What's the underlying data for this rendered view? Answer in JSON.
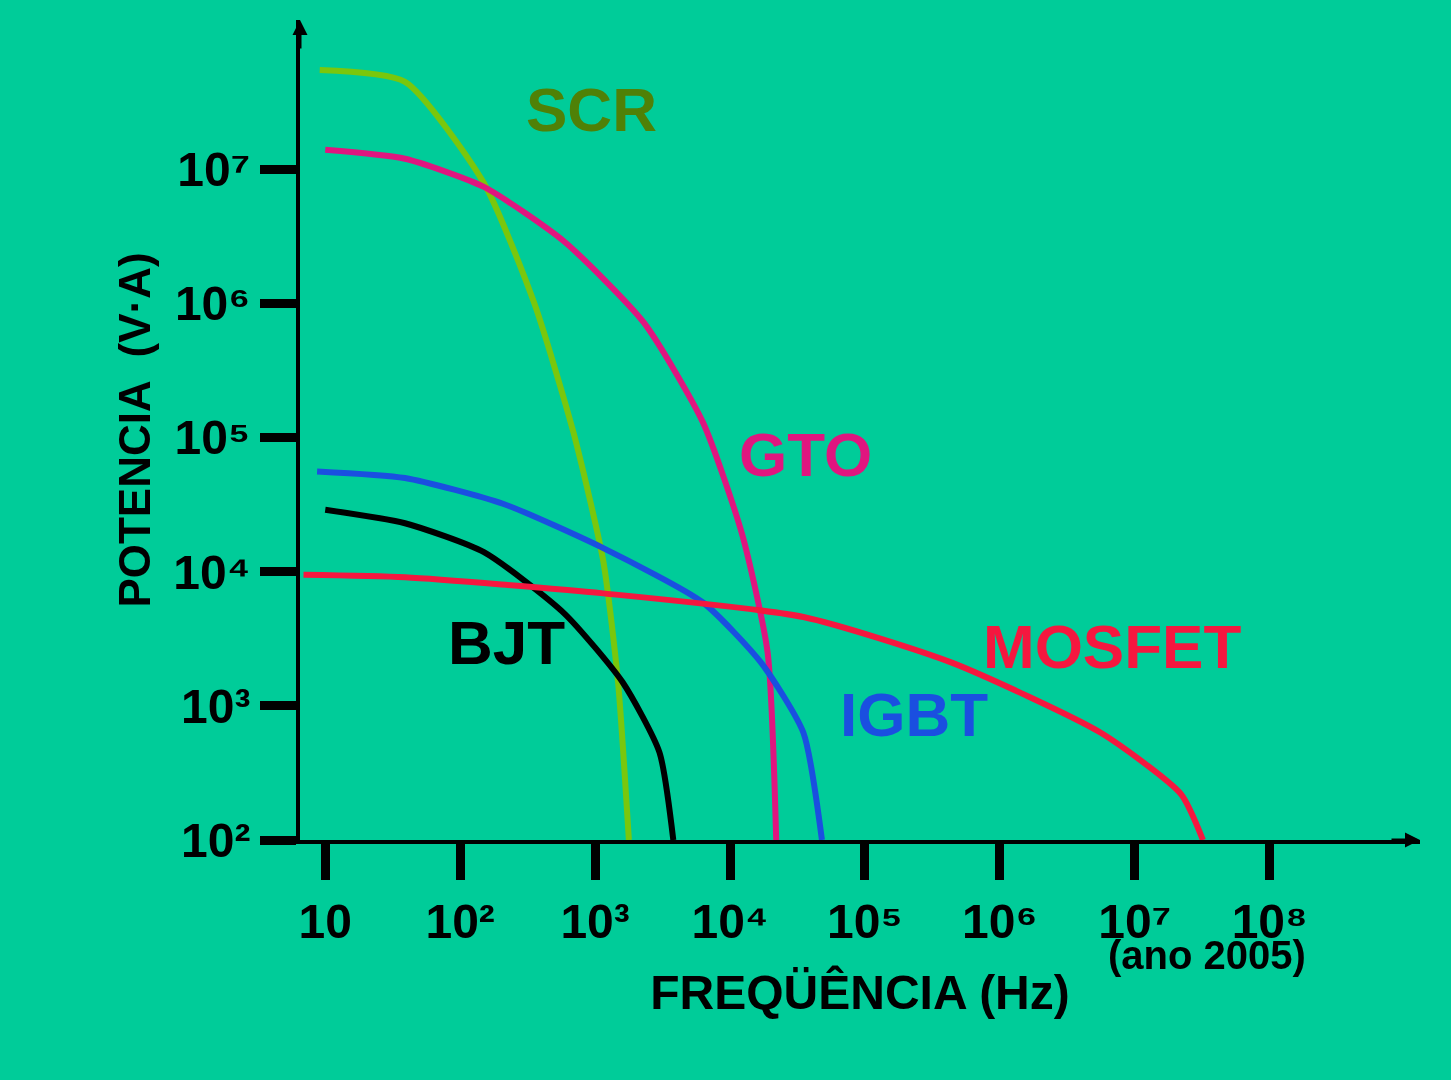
{
  "chart_data": {
    "type": "line",
    "xlabel": "FREQÜÊNCIA (Hz)",
    "ylabel": "POTENCIA  (V·A)",
    "log": "xy",
    "xlim": [
      6.5,
      1300000000
    ],
    "ylim": [
      100,
      130000000
    ],
    "xticks": [
      {
        "value": 10,
        "label": "10"
      },
      {
        "value": 100,
        "label": "10²"
      },
      {
        "value": 1000,
        "label": "10³"
      },
      {
        "value": 10000,
        "label": "10⁴"
      },
      {
        "value": 100000,
        "label": "10⁵"
      },
      {
        "value": 1000000,
        "label": "10⁶"
      },
      {
        "value": 10000000,
        "label": "10⁷"
      },
      {
        "value": 100000000,
        "label": "10⁸"
      }
    ],
    "yticks": [
      {
        "value": 100,
        "label": "10²"
      },
      {
        "value": 1000,
        "label": "10³"
      },
      {
        "value": 10000,
        "label": "10⁴"
      },
      {
        "value": 100000,
        "label": "10⁵"
      },
      {
        "value": 1000000,
        "label": "10⁶"
      },
      {
        "value": 10000000,
        "label": "10⁷"
      }
    ],
    "grid": false,
    "legend": false,
    "marker": "none",
    "line_style": "solid",
    "annotations": [
      "(ano 2005)"
    ],
    "series": [
      {
        "name": "SCR",
        "color": "#7ac70c",
        "x": [
          9.1,
          39,
          150,
          355,
          690,
          1150,
          1480,
          1780
        ],
        "values": [
          55000000,
          45000000,
          7900000,
          1000000,
          110000,
          12000,
          1500,
          100
        ]
      },
      {
        "name": "GTO",
        "color": "#e0157f",
        "x": [
          10,
          39,
          150,
          590,
          2300,
          6300,
          12300,
          19000,
          22000
        ],
        "values": [
          14000000,
          12000000,
          7400000,
          2900000,
          720000,
          130000,
          19000,
          2500,
          100
        ]
      },
      {
        "name": "BJT",
        "color": "#000000",
        "x": [
          10,
          39,
          150,
          590,
          1600,
          3000,
          3800
        ],
        "values": [
          29000,
          23000,
          14000,
          4900,
          1500,
          450,
          100
        ]
      },
      {
        "name": "IGBT",
        "color": "#1a4fe0",
        "x": [
          8.7,
          39,
          210,
          1150,
          6300,
          17000,
          35000,
          48000
        ],
        "values": [
          56000,
          50000,
          32000,
          15000,
          5900,
          2100,
          630,
          100
        ]
      },
      {
        "name": "MOSFET",
        "color": "#f5173f",
        "x": [
          6.9,
          39,
          1150,
          35000,
          440000,
          5600000,
          22000000,
          32000000
        ],
        "values": [
          9500,
          9100,
          6900,
          4600,
          2100,
          630,
          220,
          100
        ]
      }
    ]
  }
}
